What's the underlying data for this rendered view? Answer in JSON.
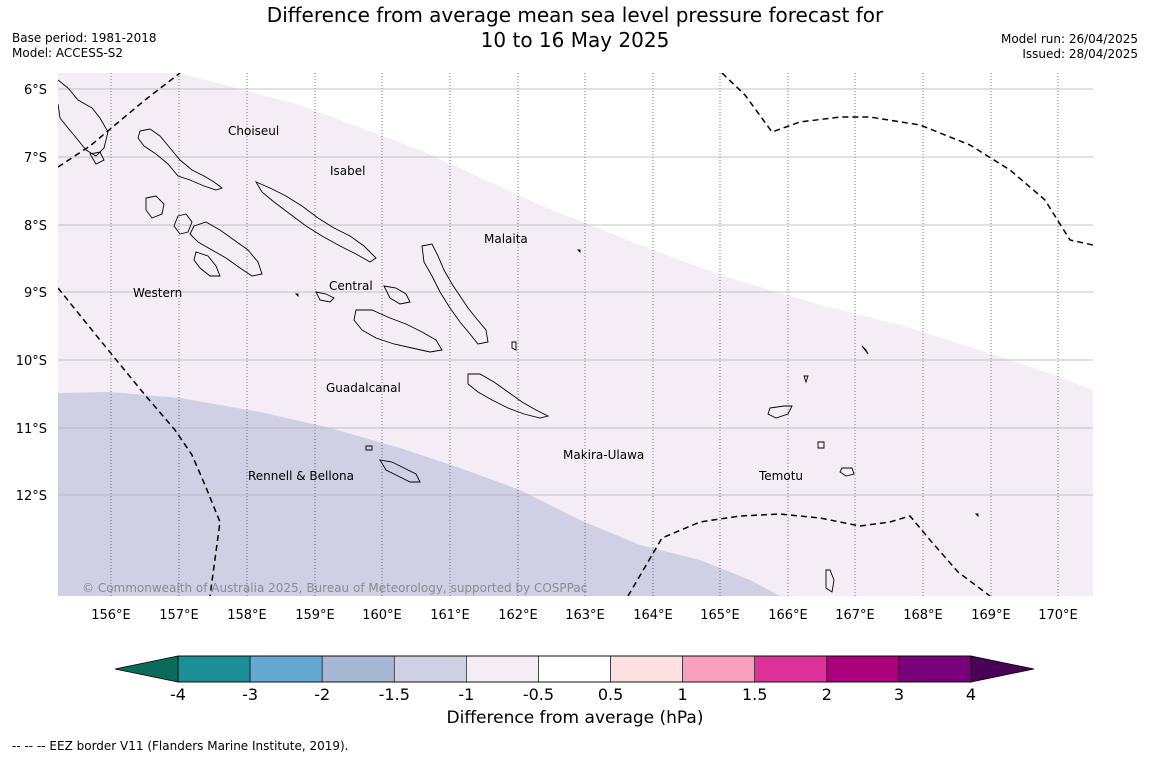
{
  "header": {
    "title_line1": "Difference from average mean sea level pressure forecast for",
    "title_line2": "10 to 16 May 2025",
    "base_period": "Base period: 1981-2018",
    "model": "Model: ACCESS-S2",
    "model_run": "Model run: 26/04/2025",
    "issued": "Issued: 28/04/2025"
  },
  "map": {
    "lat_labels": [
      "6°S",
      "7°S",
      "8°S",
      "9°S",
      "10°S",
      "11°S",
      "12°S"
    ],
    "lon_labels": [
      "156°E",
      "157°E",
      "158°E",
      "159°E",
      "160°E",
      "161°E",
      "162°E",
      "163°E",
      "164°E",
      "165°E",
      "166°E",
      "167°E",
      "168°E",
      "169°E",
      "170°E"
    ],
    "region_labels": [
      "Choiseul",
      "Isabel",
      "Malaita",
      "Western",
      "Central",
      "Guadalcanal",
      "Rennell & Bellona",
      "Makira-Ulawa",
      "Temotu"
    ],
    "copyright": "© Commonwealth of Australia 2025, Bureau of Meteorology, supported by COSPPac",
    "fill_colors": {
      "-1.5 to -1": "#cfd0e3",
      "-1 to -0.5": "#f4edf5",
      "ocean_background": "#ffffff"
    },
    "land_outline_color": "#000000",
    "eez_line_style": "dashed"
  },
  "colorbar": {
    "tick_labels": [
      "-4",
      "-3",
      "-2",
      "-1.5",
      "-1",
      "-0.5",
      "0.5",
      "1",
      "1.5",
      "2",
      "3",
      "4"
    ],
    "segment_colors": [
      "#1b8f96",
      "#65a8d1",
      "#a7b6d3",
      "#cfd0e3",
      "#f4edf5",
      "#ffffff",
      "#fde0e0",
      "#f79fbc",
      "#dc339b",
      "#ac007e",
      "#780079"
    ],
    "under_color": "#0a6a5c",
    "over_color": "#4a0158",
    "label": "Difference from average (hPa)"
  },
  "footnote": "--  --  -- EEZ border V11 (Flanders Marine Institute, 2019)."
}
